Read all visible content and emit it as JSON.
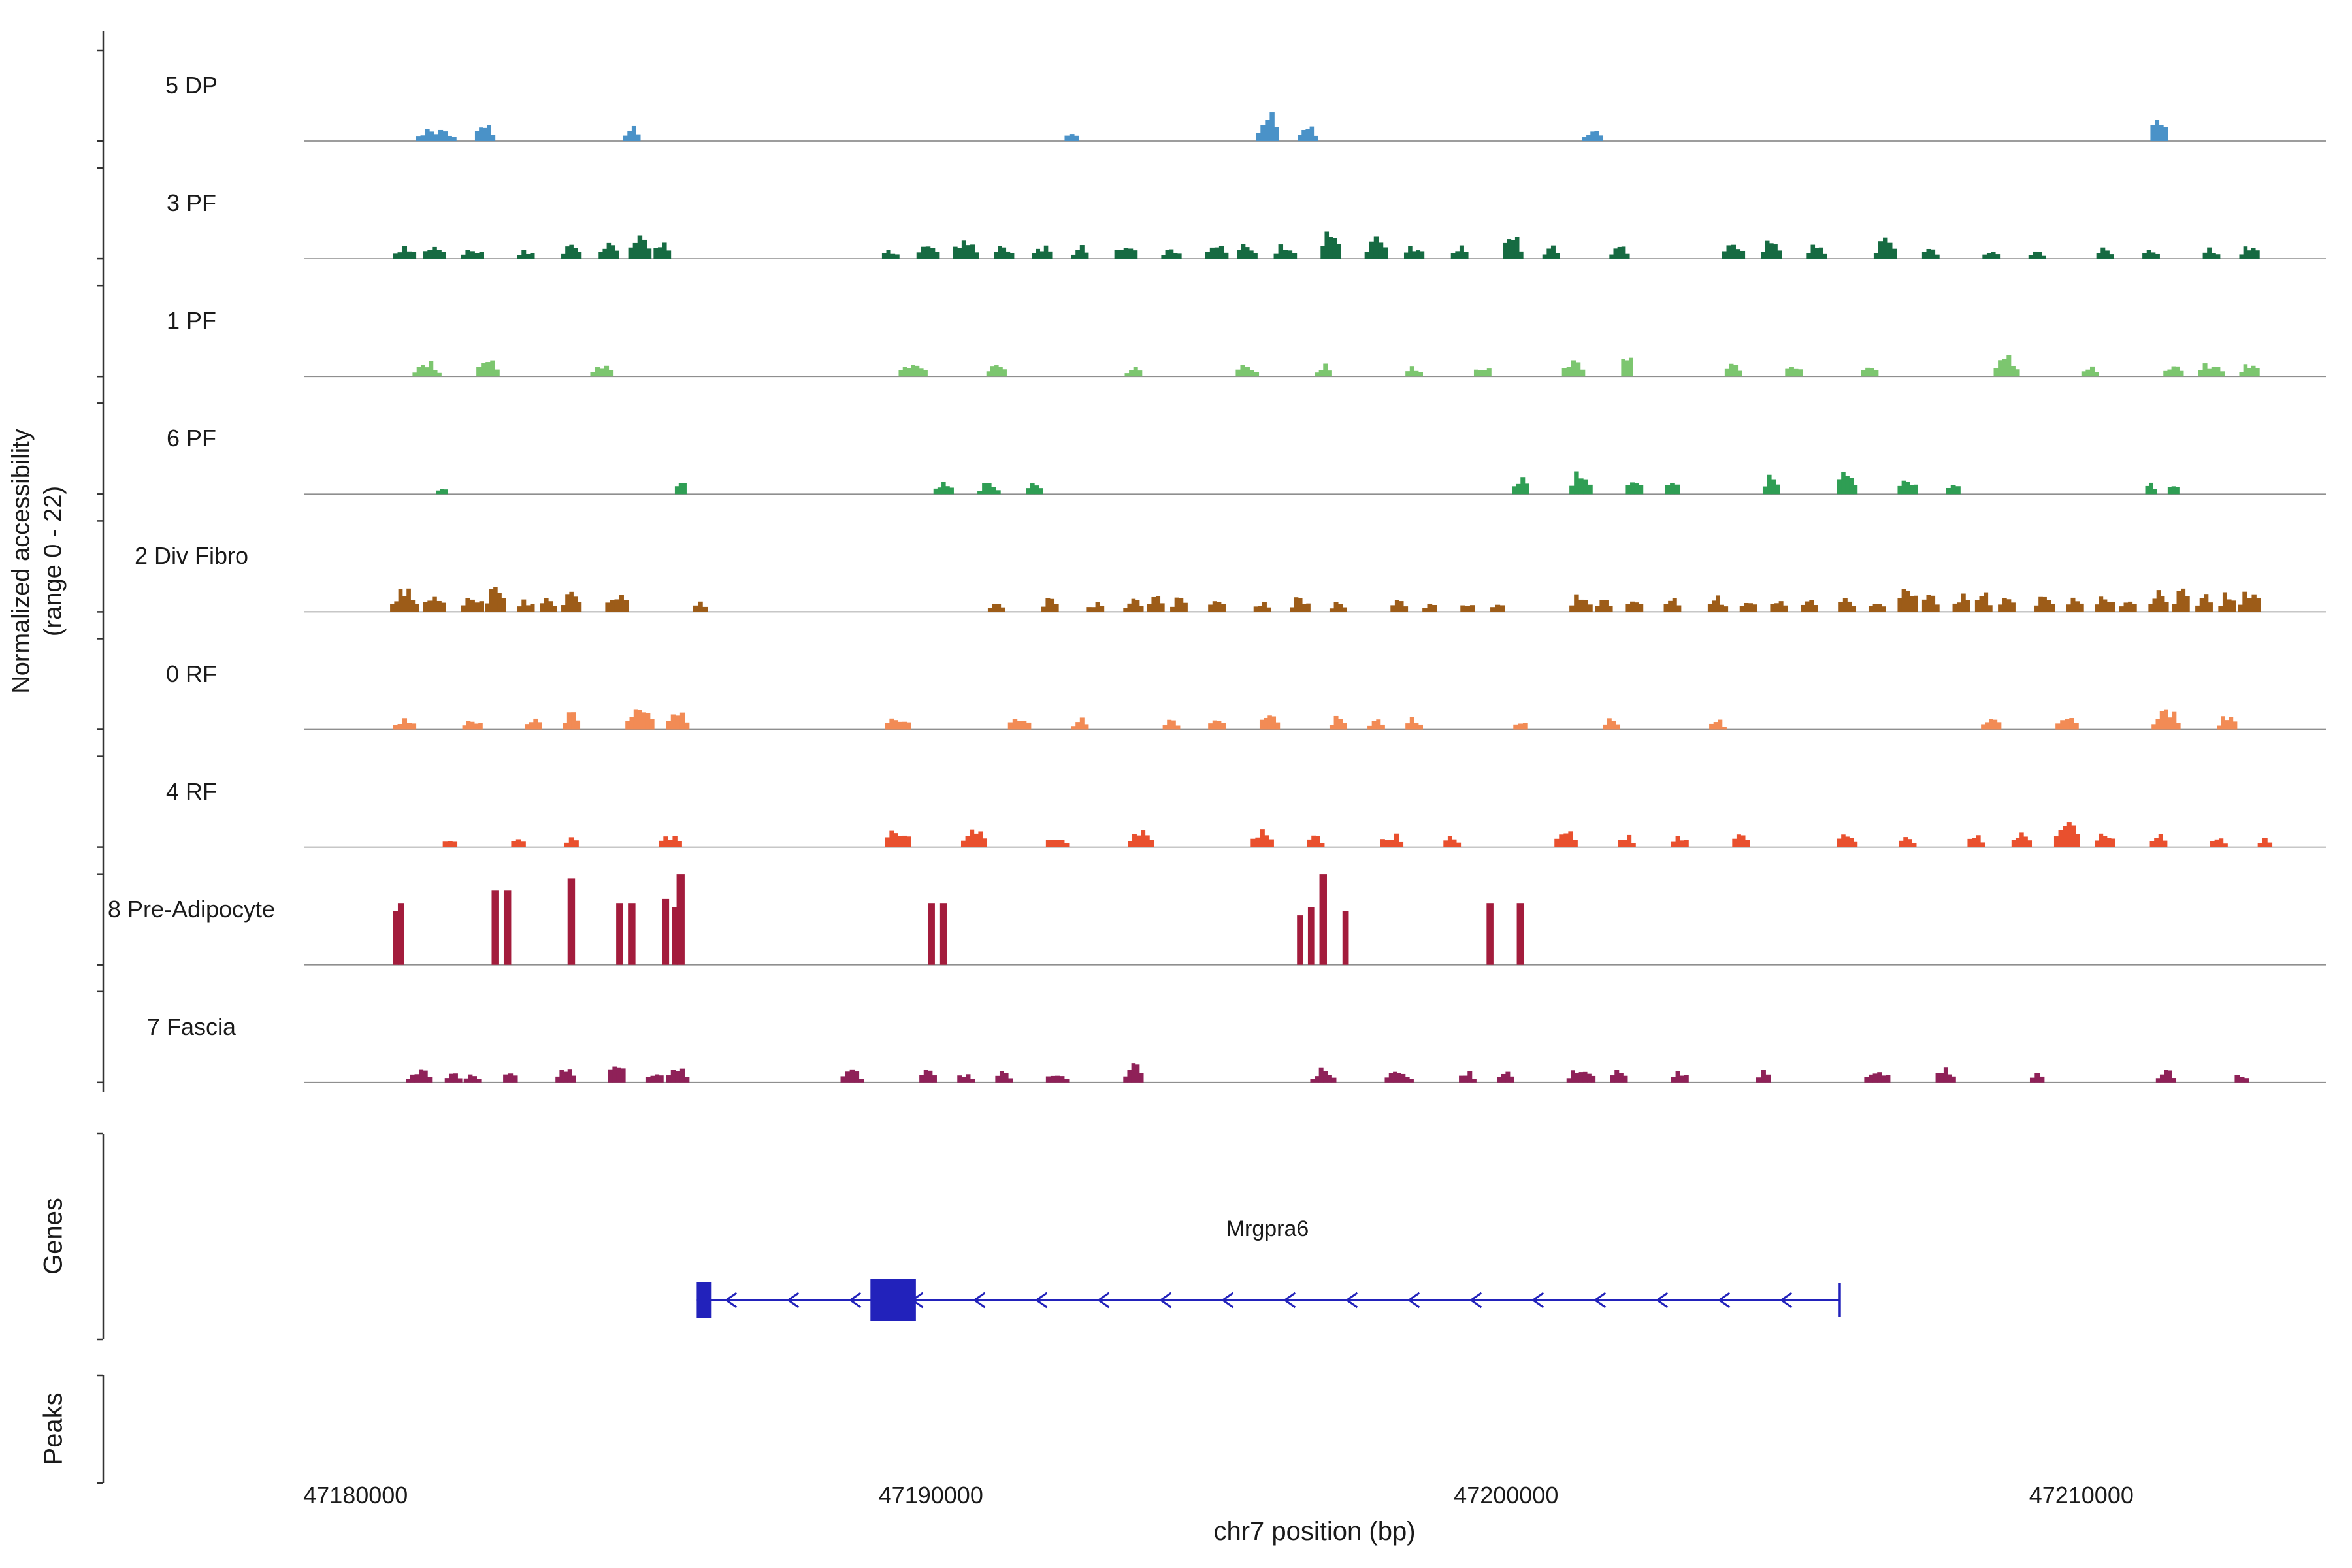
{
  "figure": {
    "background": "#ffffff",
    "axis_color": "#333333",
    "baseline_color": "#8f8f8f"
  },
  "y_axis": {
    "label_line1": "Normalized accessibility",
    "label_line2": "(range 0 - 22)"
  },
  "sections": {
    "genes_label": "Genes",
    "peaks_label": "Peaks"
  },
  "x_axis": {
    "title": "chr7 position (bp)",
    "ticks": [
      47180000,
      47190000,
      47200000,
      47210000
    ],
    "xlim": [
      47179100,
      47214250
    ]
  },
  "gene_track": {
    "genes": [
      {
        "name": "Mrgpra6",
        "start": 47185930,
        "end": 47205800,
        "strand": "-",
        "color": "#2222bb",
        "exons": [
          [
            47185930,
            47186190
          ],
          [
            47188950,
            47189740
          ]
        ]
      }
    ]
  },
  "peaks_track": {
    "peaks": []
  },
  "chart_data": {
    "type": "area",
    "xlabel": "chr7 position (bp)",
    "ylabel": "Normalized accessibility (range 0 - 22)",
    "value_range": [
      0,
      22
    ],
    "tracks": [
      {
        "label": "5 DP",
        "color": "#4a92c8",
        "shape": "bumps",
        "clusters": [
          [
            47181400,
            3.5,
            700
          ],
          [
            47182250,
            6.0,
            350
          ],
          [
            47184800,
            4.5,
            300
          ],
          [
            47192450,
            3.0,
            250
          ],
          [
            47195850,
            8.0,
            400
          ],
          [
            47196550,
            4.5,
            350
          ],
          [
            47201500,
            3.5,
            350
          ],
          [
            47211350,
            8.5,
            300
          ]
        ]
      },
      {
        "label": "3 PF",
        "color": "#166b42",
        "shape": "bumps",
        "clusters": [
          [
            47180850,
            3.5,
            400
          ],
          [
            47181370,
            4.0,
            400
          ],
          [
            47182030,
            3.5,
            400
          ],
          [
            47182960,
            2.5,
            300
          ],
          [
            47183750,
            3.5,
            350
          ],
          [
            47184400,
            4.5,
            350
          ],
          [
            47184940,
            6.5,
            400
          ],
          [
            47185330,
            5.0,
            300
          ],
          [
            47189300,
            2.5,
            300
          ],
          [
            47189950,
            4.0,
            400
          ],
          [
            47190610,
            6.5,
            450
          ],
          [
            47191270,
            3.5,
            350
          ],
          [
            47191930,
            4.0,
            350
          ],
          [
            47192590,
            3.5,
            300
          ],
          [
            47193390,
            4.0,
            400
          ],
          [
            47194180,
            3.5,
            350
          ],
          [
            47194970,
            4.0,
            400
          ],
          [
            47195500,
            5.0,
            350
          ],
          [
            47196160,
            4.0,
            400
          ],
          [
            47196950,
            8.5,
            350
          ],
          [
            47197740,
            6.5,
            400
          ],
          [
            47198400,
            4.0,
            350
          ],
          [
            47199190,
            3.5,
            300
          ],
          [
            47200120,
            7.5,
            350
          ],
          [
            47200780,
            3.5,
            300
          ],
          [
            47201970,
            4.0,
            350
          ],
          [
            47203950,
            4.0,
            400
          ],
          [
            47204610,
            5.0,
            350
          ],
          [
            47205400,
            4.0,
            350
          ],
          [
            47206590,
            5.5,
            400
          ],
          [
            47207380,
            3.5,
            300
          ],
          [
            47208430,
            2.5,
            300
          ],
          [
            47209230,
            2.5,
            300
          ],
          [
            47210410,
            3.5,
            300
          ],
          [
            47211210,
            2.5,
            300
          ],
          [
            47212260,
            3.0,
            300
          ],
          [
            47212920,
            4.0,
            350
          ]
        ]
      },
      {
        "label": "1 PF",
        "color": "#7cc66f",
        "shape": "bumps",
        "clusters": [
          [
            47181240,
            4.0,
            500
          ],
          [
            47182300,
            4.5,
            400
          ],
          [
            47184280,
            3.5,
            400
          ],
          [
            47189690,
            4.0,
            500
          ],
          [
            47191140,
            3.5,
            350
          ],
          [
            47193520,
            3.0,
            300
          ],
          [
            47195500,
            4.0,
            400
          ],
          [
            47196820,
            3.5,
            300
          ],
          [
            47198400,
            3.0,
            300
          ],
          [
            47199590,
            3.5,
            300
          ],
          [
            47201170,
            4.0,
            400
          ],
          [
            47202100,
            7.5,
            200
          ],
          [
            47203950,
            3.5,
            300
          ],
          [
            47205000,
            3.5,
            300
          ],
          [
            47206320,
            3.0,
            300
          ],
          [
            47208700,
            5.5,
            450
          ],
          [
            47210150,
            3.0,
            300
          ],
          [
            47211600,
            3.5,
            350
          ],
          [
            47212260,
            4.0,
            450
          ],
          [
            47212920,
            4.0,
            350
          ]
        ]
      },
      {
        "label": "6 PF",
        "color": "#2f9e54",
        "shape": "bumps",
        "clusters": [
          [
            47181500,
            2.5,
            200
          ],
          [
            47185650,
            4.5,
            200
          ],
          [
            47190220,
            3.0,
            350
          ],
          [
            47191010,
            3.0,
            400
          ],
          [
            47191800,
            3.0,
            300
          ],
          [
            47200250,
            4.5,
            300
          ],
          [
            47201300,
            6.5,
            400
          ],
          [
            47202230,
            4.0,
            300
          ],
          [
            47202890,
            3.5,
            250
          ],
          [
            47204610,
            5.0,
            300
          ],
          [
            47205930,
            7.0,
            350
          ],
          [
            47206980,
            5.0,
            350
          ],
          [
            47207770,
            3.5,
            250
          ],
          [
            47211210,
            3.0,
            200
          ],
          [
            47211600,
            3.5,
            200
          ]
        ]
      },
      {
        "label": "2 Div Fibro",
        "color": "#9d5c18",
        "shape": "bumps",
        "clusters": [
          [
            47180850,
            6.5,
            500
          ],
          [
            47181370,
            5.0,
            400
          ],
          [
            47182030,
            5.5,
            400
          ],
          [
            47182430,
            6.5,
            350
          ],
          [
            47182960,
            3.5,
            300
          ],
          [
            47183350,
            4.0,
            300
          ],
          [
            47183750,
            5.0,
            350
          ],
          [
            47184540,
            5.5,
            400
          ],
          [
            47185990,
            2.5,
            250
          ],
          [
            47191140,
            2.5,
            300
          ],
          [
            47192070,
            3.5,
            300
          ],
          [
            47192860,
            2.5,
            300
          ],
          [
            47193520,
            4.0,
            350
          ],
          [
            47193910,
            5.0,
            300
          ],
          [
            47194310,
            4.0,
            300
          ],
          [
            47194970,
            3.5,
            300
          ],
          [
            47195760,
            2.5,
            300
          ],
          [
            47196420,
            4.0,
            350
          ],
          [
            47197080,
            2.5,
            300
          ],
          [
            47198140,
            3.5,
            300
          ],
          [
            47198670,
            2.5,
            250
          ],
          [
            47199330,
            2.5,
            250
          ],
          [
            47199850,
            2.5,
            250
          ],
          [
            47201300,
            5.0,
            400
          ],
          [
            47201700,
            4.0,
            300
          ],
          [
            47202230,
            3.5,
            300
          ],
          [
            47202890,
            3.5,
            300
          ],
          [
            47203680,
            4.0,
            350
          ],
          [
            47204210,
            3.5,
            300
          ],
          [
            47204740,
            4.0,
            300
          ],
          [
            47205270,
            3.5,
            300
          ],
          [
            47205930,
            4.0,
            300
          ],
          [
            47206450,
            3.5,
            300
          ],
          [
            47206980,
            8.5,
            350
          ],
          [
            47207380,
            6.0,
            300
          ],
          [
            47207910,
            5.0,
            300
          ],
          [
            47208300,
            5.5,
            300
          ],
          [
            47208700,
            4.0,
            300
          ],
          [
            47209360,
            5.0,
            350
          ],
          [
            47209890,
            4.0,
            300
          ],
          [
            47210410,
            5.0,
            350
          ],
          [
            47210810,
            4.0,
            300
          ],
          [
            47211340,
            5.5,
            350
          ],
          [
            47211730,
            6.5,
            300
          ],
          [
            47212130,
            5.0,
            300
          ],
          [
            47212530,
            5.5,
            300
          ],
          [
            47212920,
            6.5,
            400
          ]
        ]
      },
      {
        "label": "0 RF",
        "color": "#f28b55",
        "shape": "bumps",
        "clusters": [
          [
            47180850,
            3.0,
            400
          ],
          [
            47182030,
            3.5,
            350
          ],
          [
            47183090,
            3.0,
            300
          ],
          [
            47183750,
            4.5,
            300
          ],
          [
            47184940,
            6.0,
            500
          ],
          [
            47185600,
            5.5,
            400
          ],
          [
            47189430,
            4.0,
            450
          ],
          [
            47191540,
            3.5,
            400
          ],
          [
            47192590,
            3.0,
            300
          ],
          [
            47194180,
            3.5,
            300
          ],
          [
            47194970,
            3.0,
            300
          ],
          [
            47195890,
            4.5,
            350
          ],
          [
            47197080,
            3.5,
            300
          ],
          [
            47197740,
            3.0,
            300
          ],
          [
            47198400,
            3.5,
            300
          ],
          [
            47200250,
            2.5,
            250
          ],
          [
            47201830,
            3.0,
            300
          ],
          [
            47203680,
            2.5,
            300
          ],
          [
            47208430,
            3.5,
            350
          ],
          [
            47209750,
            4.0,
            400
          ],
          [
            47211470,
            6.0,
            500
          ],
          [
            47212530,
            4.0,
            350
          ]
        ]
      },
      {
        "label": "4 RF",
        "color": "#e9502e",
        "shape": "bumps",
        "clusters": [
          [
            47181640,
            2.5,
            250
          ],
          [
            47182830,
            2.5,
            250
          ],
          [
            47183750,
            2.5,
            250
          ],
          [
            47185470,
            3.0,
            400
          ],
          [
            47189430,
            6.0,
            450
          ],
          [
            47190750,
            5.0,
            450
          ],
          [
            47192200,
            4.0,
            400
          ],
          [
            47193650,
            4.5,
            450
          ],
          [
            47195760,
            4.5,
            400
          ],
          [
            47196690,
            3.5,
            300
          ],
          [
            47198010,
            4.0,
            400
          ],
          [
            47199060,
            3.0,
            300
          ],
          [
            47201040,
            5.0,
            400
          ],
          [
            47202100,
            3.5,
            300
          ],
          [
            47203020,
            3.0,
            300
          ],
          [
            47204080,
            3.5,
            300
          ],
          [
            47205930,
            4.0,
            350
          ],
          [
            47206980,
            3.5,
            300
          ],
          [
            47208170,
            3.5,
            300
          ],
          [
            47208960,
            4.5,
            350
          ],
          [
            47209750,
            8.0,
            450
          ],
          [
            47210410,
            4.5,
            350
          ],
          [
            47211340,
            3.5,
            300
          ],
          [
            47212390,
            3.0,
            300
          ],
          [
            47213190,
            2.5,
            250
          ]
        ]
      },
      {
        "label": "8 Pre-Adipocyte",
        "color": "#a31c3c",
        "shape": "peaks",
        "clusters": [
          [
            47180700,
            13,
            90
          ],
          [
            47180790,
            15,
            110
          ],
          [
            47182430,
            18,
            130
          ],
          [
            47182640,
            18,
            130
          ],
          [
            47183750,
            21,
            130
          ],
          [
            47184590,
            15,
            120
          ],
          [
            47184800,
            15,
            130
          ],
          [
            47185390,
            16,
            120
          ],
          [
            47185550,
            14,
            110
          ],
          [
            47185650,
            22,
            140
          ],
          [
            47190010,
            15,
            120
          ],
          [
            47190220,
            15,
            120
          ],
          [
            47196420,
            12,
            110
          ],
          [
            47196610,
            14,
            110
          ],
          [
            47196820,
            22,
            130
          ],
          [
            47197210,
            13,
            110
          ],
          [
            47199720,
            15,
            120
          ],
          [
            47200250,
            15,
            130
          ]
        ]
      },
      {
        "label": "7 Fascia",
        "color": "#8f2158",
        "shape": "bumps",
        "clusters": [
          [
            47181100,
            3.5,
            450
          ],
          [
            47181700,
            3.0,
            300
          ],
          [
            47182030,
            3.0,
            300
          ],
          [
            47182690,
            3.5,
            250
          ],
          [
            47183650,
            4.0,
            350
          ],
          [
            47184540,
            7.0,
            300
          ],
          [
            47185200,
            3.5,
            300
          ],
          [
            47185600,
            4.5,
            400
          ],
          [
            47188630,
            3.5,
            400
          ],
          [
            47189950,
            4.0,
            300
          ],
          [
            47190610,
            3.0,
            300
          ],
          [
            47191270,
            3.0,
            300
          ],
          [
            47192200,
            3.5,
            400
          ],
          [
            47193520,
            6.0,
            350
          ],
          [
            47196820,
            4.0,
            450
          ],
          [
            47198140,
            3.5,
            500
          ],
          [
            47199330,
            3.0,
            300
          ],
          [
            47199990,
            3.5,
            300
          ],
          [
            47201300,
            4.0,
            500
          ],
          [
            47201960,
            3.5,
            300
          ],
          [
            47203020,
            3.0,
            300
          ],
          [
            47204470,
            3.5,
            250
          ],
          [
            47206450,
            4.0,
            450
          ],
          [
            47207640,
            4.5,
            350
          ],
          [
            47209230,
            3.0,
            250
          ],
          [
            47211470,
            4.0,
            350
          ],
          [
            47212790,
            3.0,
            250
          ]
        ]
      }
    ]
  }
}
